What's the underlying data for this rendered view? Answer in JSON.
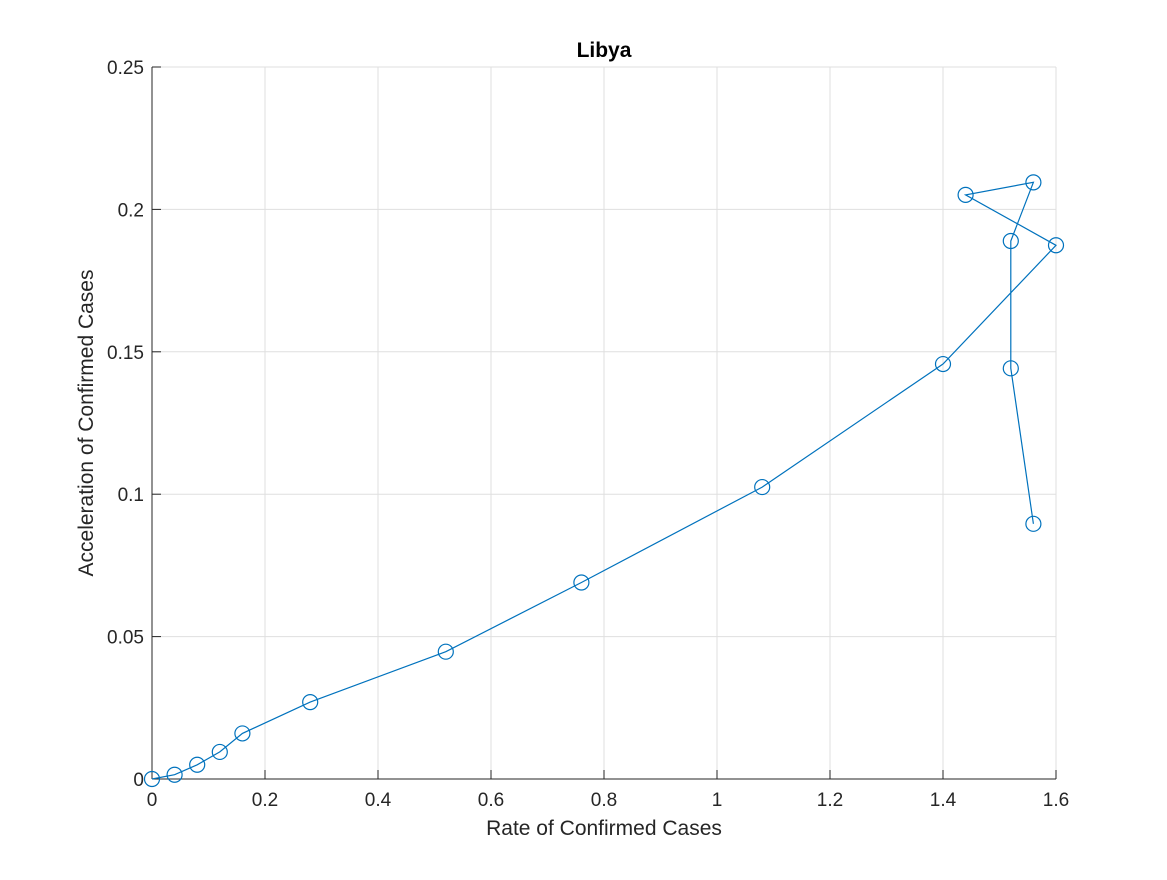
{
  "chart_data": {
    "type": "line",
    "title": "Libya",
    "xlabel": "Rate of Confirmed Cases",
    "ylabel": "Acceleration of Confirmed Cases",
    "xlim": [
      0,
      1.6
    ],
    "ylim": [
      0,
      0.25
    ],
    "xticks": [
      "0",
      "0.2",
      "0.4",
      "0.6",
      "0.8",
      "1",
      "1.2",
      "1.4",
      "1.6"
    ],
    "yticks": [
      "0",
      "0.05",
      "0.1",
      "0.15",
      "0.2",
      "0.25"
    ],
    "grid": true,
    "marker": "circle",
    "series": [
      {
        "color": "#0072BD",
        "x": [
          0,
          0.04,
          0.08,
          0.12,
          0.16,
          0.28,
          0.52,
          0.76,
          1.08,
          1.4,
          1.6,
          1.44,
          1.56,
          1.52,
          1.52,
          1.56
        ],
        "y": [
          0,
          0.0015,
          0.005,
          0.0095,
          0.016,
          0.027,
          0.0447,
          0.069,
          0.1025,
          0.1457,
          0.1874,
          0.2051,
          0.2095,
          0.1889,
          0.1442,
          0.0896
        ]
      }
    ]
  }
}
